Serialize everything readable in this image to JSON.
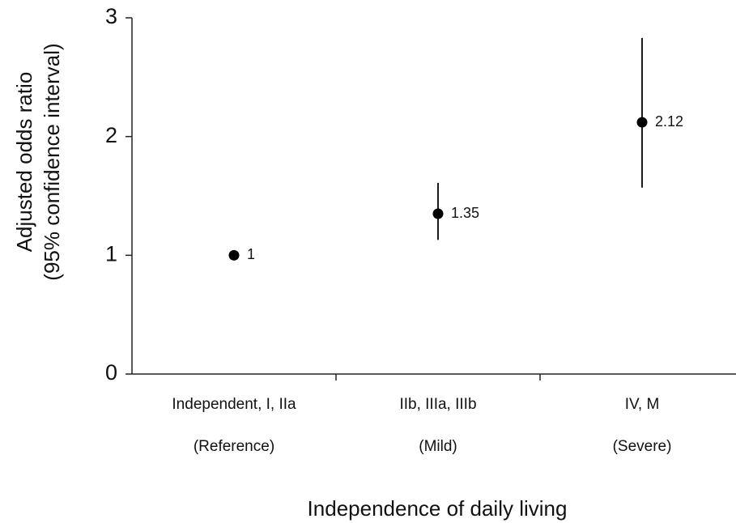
{
  "chart_data": {
    "type": "errorbar",
    "y_label": [
      "Adjusted odds ratio",
      "(95% confidence interval)"
    ],
    "x_label": "Independence of daily living",
    "categories": [
      "Independent,  I, IIa",
      "IIb, IIIa, IIIb",
      "IV, M"
    ],
    "category_notes": [
      "(Reference)",
      "(Mild)",
      "(Severe)"
    ],
    "values": [
      1,
      1.35,
      2.12
    ],
    "ci_low": [
      null,
      1.13,
      1.57
    ],
    "ci_high": [
      null,
      1.61,
      2.83
    ],
    "color": "#000000",
    "ylim": [
      0,
      3
    ],
    "yticks": [
      0,
      1,
      2,
      3
    ],
    "grid": false
  }
}
